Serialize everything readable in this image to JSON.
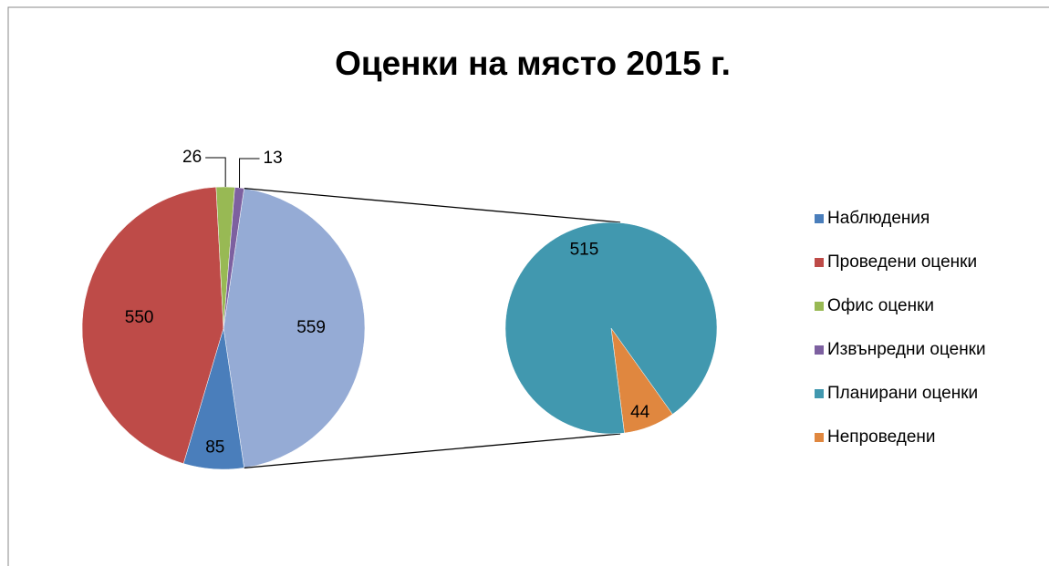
{
  "chart_data": {
    "type": "pie-of-pie",
    "title": "Оценки на място 2015 г.",
    "categories": [
      "Наблюдения",
      "Проведени оценки",
      "Офис оценки",
      "Извънредни оценки",
      "Планирани оценки",
      "Непроведени"
    ],
    "values": [
      85,
      550,
      26,
      13,
      515,
      44
    ],
    "colors": [
      "#4a7ebb",
      "#be4b48",
      "#98b954",
      "#7d60a0",
      "#4198af",
      "#e0873f"
    ],
    "combined_value": 559,
    "combined_color": "#95abd5",
    "legend": "right"
  }
}
